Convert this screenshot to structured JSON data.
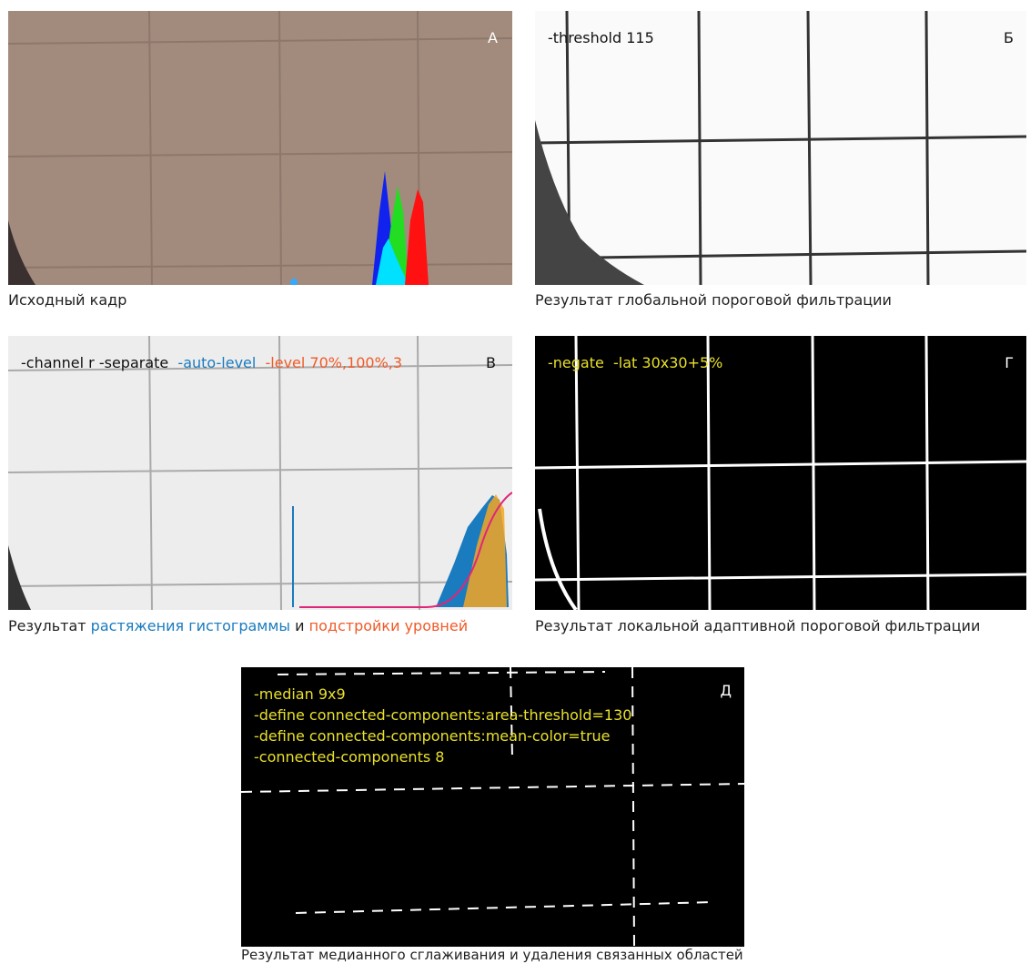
{
  "panels": [
    {
      "letter": "А",
      "caption": "Исходный кадр"
    },
    {
      "letter": "Б",
      "overlay": "-threshold 115",
      "caption": "Результат глобальной пороговой фильтрации"
    },
    {
      "letter": "В",
      "overlay": [
        "-channel r -separate",
        "-auto-level",
        "-level 70%,100%,3"
      ],
      "caption": [
        "Результат",
        "растяжения гистограммы",
        "и",
        "подстройки уровней"
      ]
    },
    {
      "letter": "Г",
      "overlay": "-negate  -lat 30x30+5%",
      "caption": "Результат локальной адаптивной пороговой фильтрации"
    },
    {
      "letter": "Д",
      "overlay": [
        "-median 9x9",
        "-define connected-components:area-threshold=130",
        "-define connected-components:mean-color=true",
        "-connected-components 8"
      ],
      "caption": "Результат медианного сглаживания и удаления связанных областей"
    }
  ]
}
